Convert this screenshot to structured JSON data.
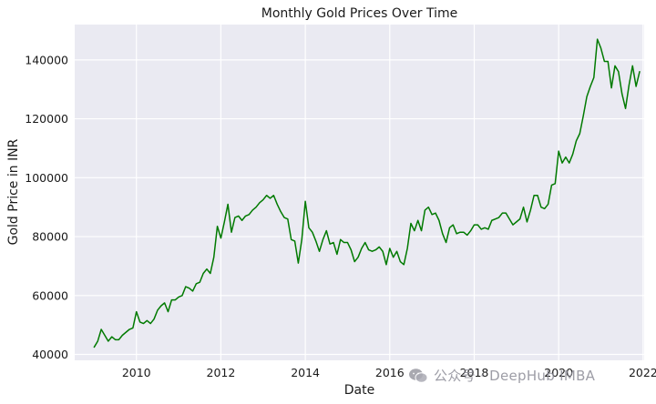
{
  "chart_data": {
    "type": "line",
    "title": "Monthly Gold Prices Over Time",
    "xlabel": "Date",
    "ylabel": "Gold Price in INR",
    "xlim": [
      "2008-07-15",
      "2022-01-10"
    ],
    "ylim": [
      38000,
      152000
    ],
    "x_ticks": [
      {
        "date": "2010-01-01",
        "label": "2010"
      },
      {
        "date": "2012-01-01",
        "label": "2012"
      },
      {
        "date": "2014-01-01",
        "label": "2014"
      },
      {
        "date": "2016-01-01",
        "label": "2016"
      },
      {
        "date": "2018-01-01",
        "label": "2018"
      },
      {
        "date": "2020-01-01",
        "label": "2020"
      },
      {
        "date": "2022-01-01",
        "label": "2022"
      }
    ],
    "y_ticks": [
      {
        "value": 40000,
        "label": "40000"
      },
      {
        "value": 60000,
        "label": "60000"
      },
      {
        "value": 80000,
        "label": "80000"
      },
      {
        "value": 100000,
        "label": "100000"
      },
      {
        "value": 120000,
        "label": "120000"
      },
      {
        "value": 140000,
        "label": "140000"
      }
    ],
    "grid": true,
    "line_color": "#007a00",
    "series": [
      {
        "points": [
          [
            "2009-01",
            42500
          ],
          [
            "2009-02",
            44500
          ],
          [
            "2009-03",
            48500
          ],
          [
            "2009-04",
            46500
          ],
          [
            "2009-05",
            44500
          ],
          [
            "2009-06",
            46000
          ],
          [
            "2009-07",
            45000
          ],
          [
            "2009-08",
            45000
          ],
          [
            "2009-09",
            46500
          ],
          [
            "2009-10",
            47500
          ],
          [
            "2009-11",
            48500
          ],
          [
            "2009-12",
            49000
          ],
          [
            "2010-01",
            54500
          ],
          [
            "2010-02",
            51000
          ],
          [
            "2010-03",
            50500
          ],
          [
            "2010-04",
            51500
          ],
          [
            "2010-05",
            50500
          ],
          [
            "2010-06",
            52000
          ],
          [
            "2010-07",
            55000
          ],
          [
            "2010-08",
            56500
          ],
          [
            "2010-09",
            57500
          ],
          [
            "2010-10",
            54500
          ],
          [
            "2010-11",
            58500
          ],
          [
            "2010-12",
            58500
          ],
          [
            "2011-01",
            59500
          ],
          [
            "2011-02",
            60000
          ],
          [
            "2011-03",
            63000
          ],
          [
            "2011-04",
            62500
          ],
          [
            "2011-05",
            61500
          ],
          [
            "2011-06",
            64000
          ],
          [
            "2011-07",
            64500
          ],
          [
            "2011-08",
            67500
          ],
          [
            "2011-09",
            69000
          ],
          [
            "2011-10",
            67500
          ],
          [
            "2011-11",
            73000
          ],
          [
            "2011-12",
            83500
          ],
          [
            "2012-01",
            79500
          ],
          [
            "2012-02",
            85000
          ],
          [
            "2012-03",
            91000
          ],
          [
            "2012-04",
            81500
          ],
          [
            "2012-05",
            86500
          ],
          [
            "2012-06",
            87000
          ],
          [
            "2012-07",
            85500
          ],
          [
            "2012-08",
            87000
          ],
          [
            "2012-09",
            87500
          ],
          [
            "2012-10",
            89000
          ],
          [
            "2012-11",
            90000
          ],
          [
            "2012-12",
            91500
          ],
          [
            "2013-01",
            92500
          ],
          [
            "2013-02",
            94000
          ],
          [
            "2013-03",
            93000
          ],
          [
            "2013-04",
            94000
          ],
          [
            "2013-05",
            91000
          ],
          [
            "2013-06",
            88500
          ],
          [
            "2013-07",
            86500
          ],
          [
            "2013-08",
            86000
          ],
          [
            "2013-09",
            79000
          ],
          [
            "2013-10",
            78500
          ],
          [
            "2013-11",
            71000
          ],
          [
            "2013-12",
            79000
          ],
          [
            "2014-01",
            92000
          ],
          [
            "2014-02",
            83000
          ],
          [
            "2014-03",
            81500
          ],
          [
            "2014-04",
            78500
          ],
          [
            "2014-05",
            75000
          ],
          [
            "2014-06",
            79000
          ],
          [
            "2014-07",
            82000
          ],
          [
            "2014-08",
            77500
          ],
          [
            "2014-09",
            78000
          ],
          [
            "2014-10",
            74000
          ],
          [
            "2014-11",
            79000
          ],
          [
            "2014-12",
            78000
          ],
          [
            "2015-01",
            78000
          ],
          [
            "2015-02",
            75500
          ],
          [
            "2015-03",
            71500
          ],
          [
            "2015-04",
            73000
          ],
          [
            "2015-05",
            76000
          ],
          [
            "2015-06",
            78000
          ],
          [
            "2015-07",
            75500
          ],
          [
            "2015-08",
            75000
          ],
          [
            "2015-09",
            75500
          ],
          [
            "2015-10",
            76500
          ],
          [
            "2015-11",
            75000
          ],
          [
            "2015-12",
            70500
          ],
          [
            "2016-01",
            76000
          ],
          [
            "2016-02",
            73000
          ],
          [
            "2016-03",
            75000
          ],
          [
            "2016-04",
            71500
          ],
          [
            "2016-05",
            70500
          ],
          [
            "2016-06",
            76000
          ],
          [
            "2016-07",
            84500
          ],
          [
            "2016-08",
            82000
          ],
          [
            "2016-09",
            85500
          ],
          [
            "2016-10",
            82000
          ],
          [
            "2016-11",
            89000
          ],
          [
            "2016-12",
            90000
          ],
          [
            "2017-01",
            87500
          ],
          [
            "2017-02",
            88000
          ],
          [
            "2017-03",
            85500
          ],
          [
            "2017-04",
            81000
          ],
          [
            "2017-05",
            78000
          ],
          [
            "2017-06",
            83000
          ],
          [
            "2017-07",
            84000
          ],
          [
            "2017-08",
            81000
          ],
          [
            "2017-09",
            81500
          ],
          [
            "2017-10",
            81500
          ],
          [
            "2017-11",
            80500
          ],
          [
            "2017-12",
            82000
          ],
          [
            "2018-01",
            84000
          ],
          [
            "2018-02",
            84000
          ],
          [
            "2018-03",
            82500
          ],
          [
            "2018-04",
            83000
          ],
          [
            "2018-05",
            82500
          ],
          [
            "2018-06",
            85500
          ],
          [
            "2018-07",
            86000
          ],
          [
            "2018-08",
            86500
          ],
          [
            "2018-09",
            88000
          ],
          [
            "2018-10",
            88000
          ],
          [
            "2018-11",
            86000
          ],
          [
            "2018-12",
            84000
          ],
          [
            "2019-01",
            85000
          ],
          [
            "2019-02",
            86000
          ],
          [
            "2019-03",
            90000
          ],
          [
            "2019-04",
            85000
          ],
          [
            "2019-05",
            89000
          ],
          [
            "2019-06",
            94000
          ],
          [
            "2019-07",
            94000
          ],
          [
            "2019-08",
            90000
          ],
          [
            "2019-09",
            89500
          ],
          [
            "2019-10",
            91000
          ],
          [
            "2019-11",
            97500
          ],
          [
            "2019-12",
            98000
          ],
          [
            "2020-01",
            109000
          ],
          [
            "2020-02",
            105000
          ],
          [
            "2020-03",
            107000
          ],
          [
            "2020-04",
            105000
          ],
          [
            "2020-05",
            108000
          ],
          [
            "2020-06",
            112500
          ],
          [
            "2020-07",
            115000
          ],
          [
            "2020-08",
            121000
          ],
          [
            "2020-09",
            127500
          ],
          [
            "2020-10",
            131000
          ],
          [
            "2020-11",
            134000
          ],
          [
            "2020-12",
            147000
          ],
          [
            "2021-01",
            144000
          ],
          [
            "2021-02",
            139500
          ],
          [
            "2021-03",
            139500
          ],
          [
            "2021-04",
            130500
          ],
          [
            "2021-05",
            138000
          ],
          [
            "2021-06",
            136000
          ],
          [
            "2021-07",
            128500
          ],
          [
            "2021-08",
            123500
          ],
          [
            "2021-09",
            131500
          ],
          [
            "2021-10",
            138000
          ],
          [
            "2021-11",
            131000
          ],
          [
            "2021-12",
            136000
          ]
        ]
      }
    ]
  },
  "watermark": {
    "text": "公众号 · DeepHub IMBA",
    "icon": "wechat-logo-icon"
  }
}
